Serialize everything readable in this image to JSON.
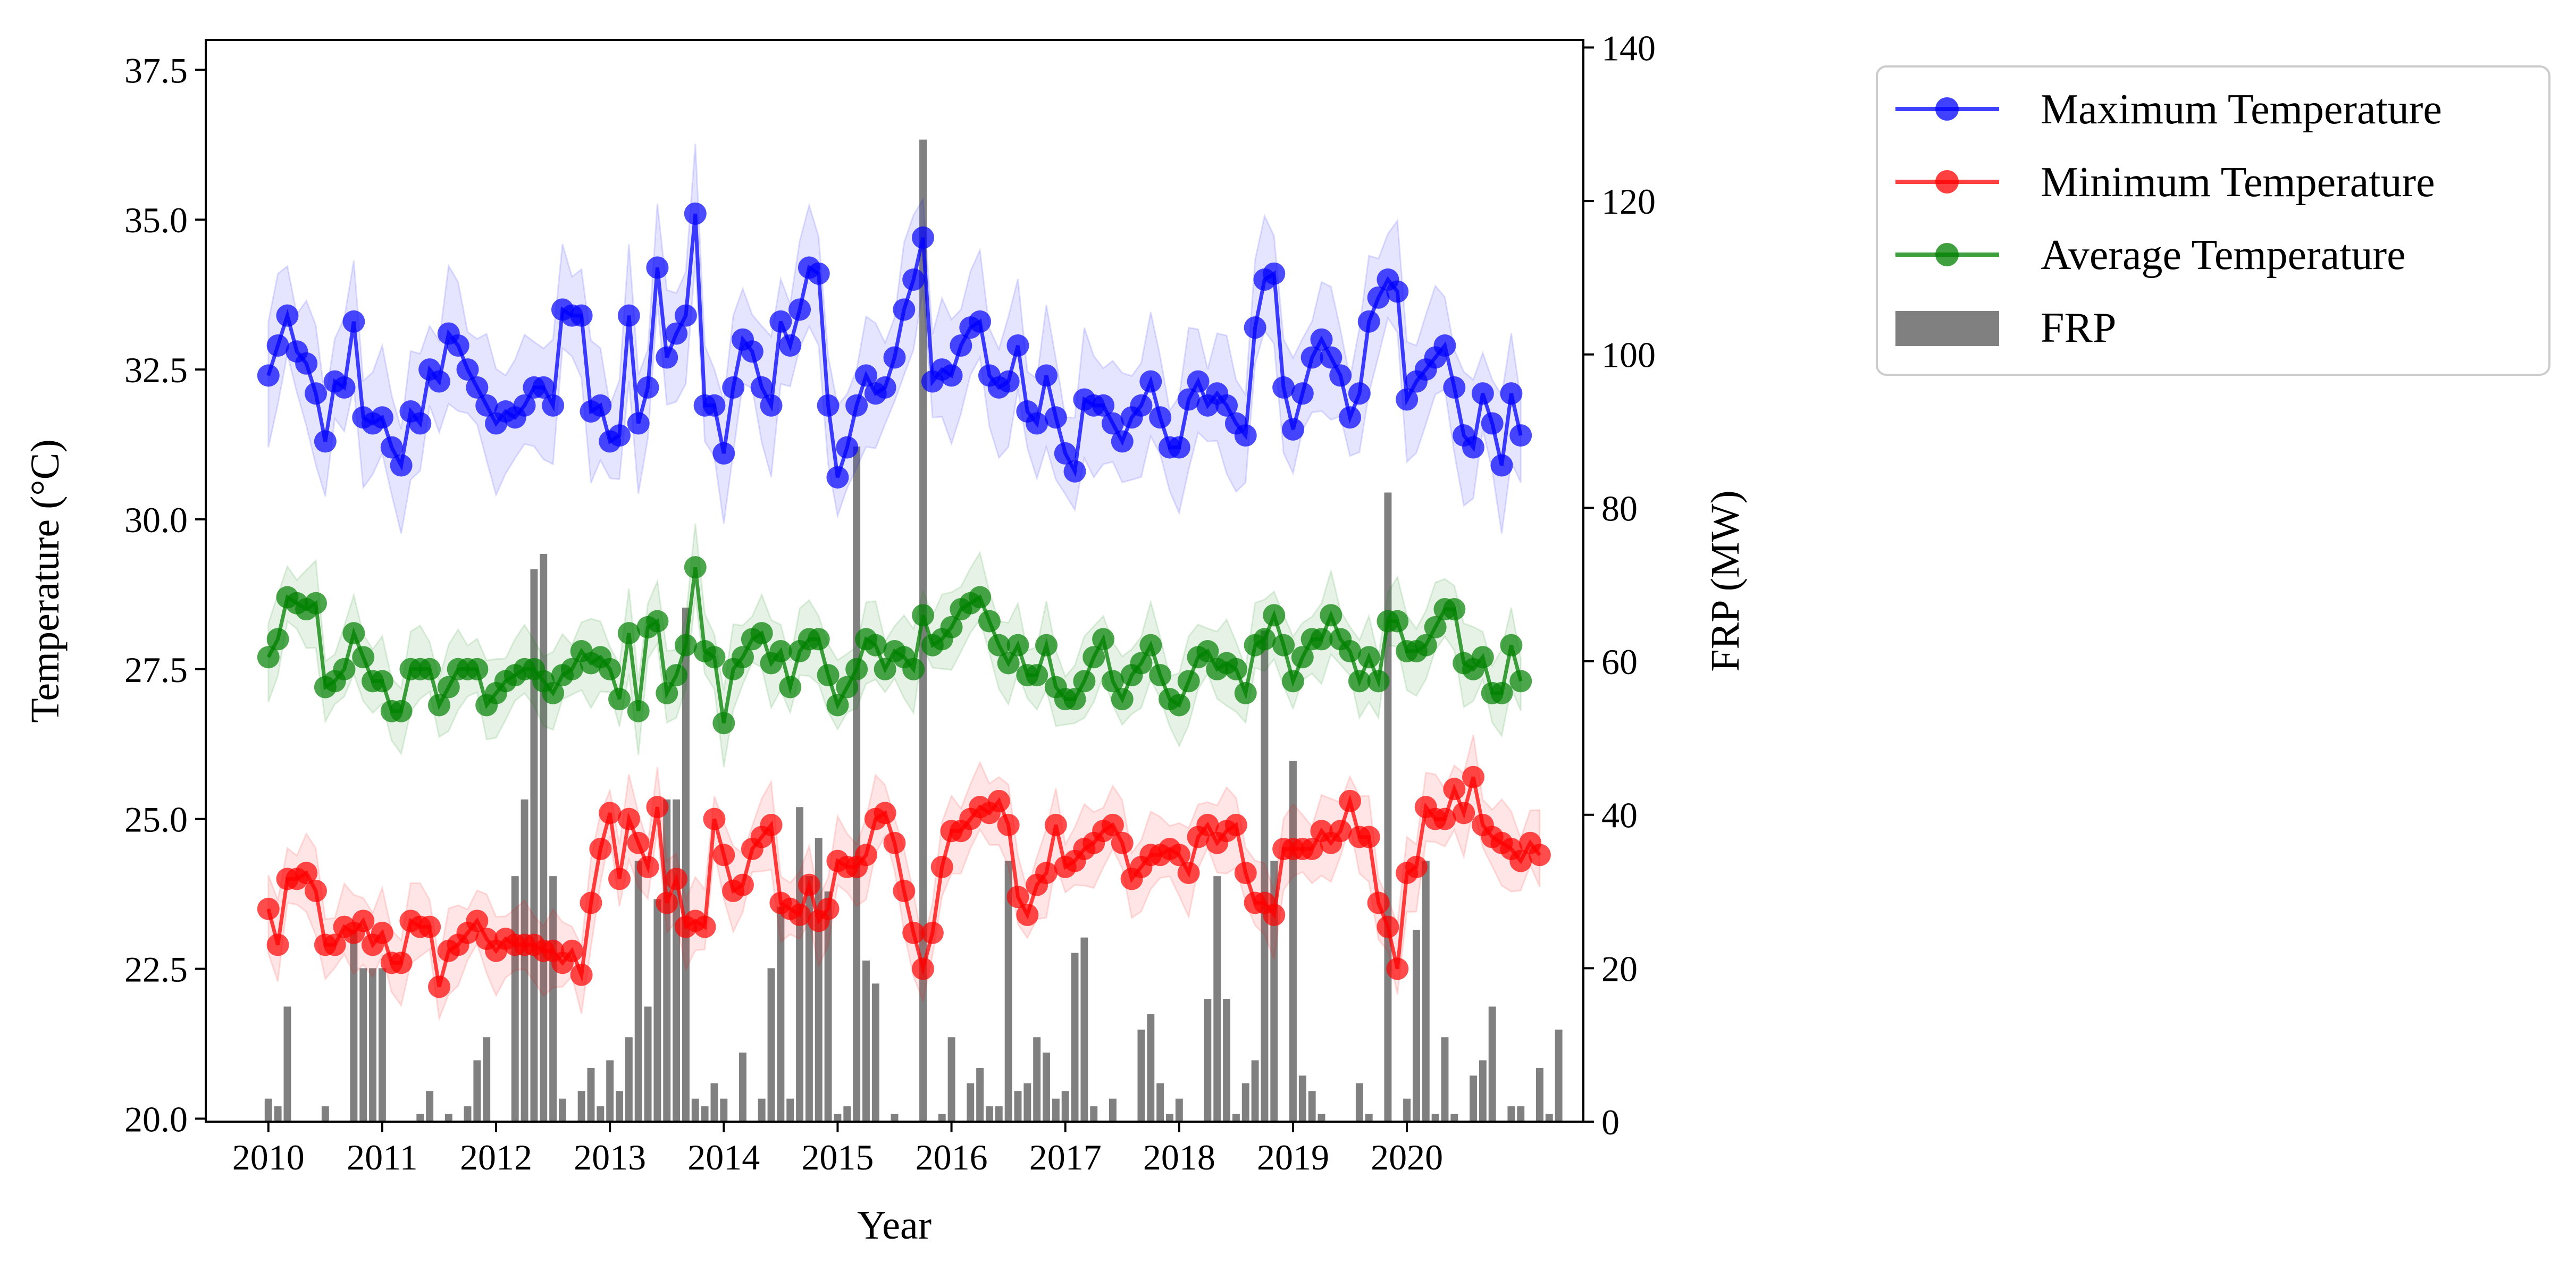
{
  "chart_data": {
    "type": "line+bar",
    "xlabel": "Year",
    "ylabel_left": "Temperature (°C)",
    "ylabel_right": "FRP (MW)",
    "x_ticks": [
      "2010",
      "2011",
      "2012",
      "2013",
      "2014",
      "2015",
      "2016",
      "2017",
      "2018",
      "2019",
      "2020"
    ],
    "x_range": [
      2009.45,
      2021.55
    ],
    "y_left": {
      "ylim": [
        19.95,
        38.0
      ],
      "ticks": [
        "20.0",
        "22.5",
        "25.0",
        "27.5",
        "30.0",
        "32.5",
        "35.0",
        "37.5"
      ]
    },
    "y_right": {
      "ylim": [
        0,
        141
      ],
      "ticks": [
        "0",
        "20",
        "40",
        "60",
        "80",
        "100",
        "120",
        "140"
      ]
    },
    "grid": false,
    "legend_position": "outside-right-top",
    "series": [
      {
        "name": "Maximum Temperature",
        "color": "#0000ff",
        "band_width": 1.2,
        "values": [
          32.4,
          32.9,
          33.4,
          32.8,
          32.6,
          32.1,
          31.3,
          32.3,
          32.2,
          33.3,
          31.7,
          31.6,
          31.7,
          31.2,
          30.9,
          31.8,
          31.6,
          32.5,
          32.3,
          33.1,
          32.9,
          32.5,
          32.2,
          31.9,
          31.6,
          31.8,
          31.7,
          31.9,
          32.2,
          32.2,
          31.9,
          33.5,
          33.4,
          33.4,
          31.8,
          31.9,
          31.3,
          31.4,
          33.4,
          31.6,
          32.2,
          34.2,
          32.7,
          33.1,
          33.4,
          35.1,
          31.9,
          31.9,
          31.1,
          32.2,
          33.0,
          32.8,
          32.2,
          31.9,
          33.3,
          32.9,
          33.5,
          34.2,
          34.1,
          31.9,
          30.7,
          31.2,
          31.9,
          32.4,
          32.1,
          32.2,
          32.7,
          33.5,
          34.0,
          34.7,
          32.3,
          32.5,
          32.4,
          32.9,
          33.2,
          33.3,
          32.4,
          32.2,
          32.3,
          32.9,
          31.8,
          31.6,
          32.4,
          31.7,
          31.1,
          30.8,
          32.0,
          31.9,
          31.9,
          31.6,
          31.3,
          31.7,
          31.9,
          32.3,
          31.7,
          31.2,
          31.2,
          32.0,
          32.3,
          31.9,
          32.1,
          31.9,
          31.6,
          31.4,
          33.2,
          34.0,
          34.1,
          32.2,
          31.5,
          32.1,
          32.7,
          33.0,
          32.7,
          32.4,
          31.7,
          32.1,
          33.3,
          33.7,
          34.0,
          33.8,
          32.0,
          32.3,
          32.5,
          32.7,
          32.9,
          32.2,
          31.4,
          31.2,
          32.1,
          31.6,
          30.9,
          32.1,
          31.4
        ]
      },
      {
        "name": "Minimum Temperature",
        "color": "#ff0000",
        "band_width": 0.75,
        "values": [
          23.5,
          22.9,
          24.0,
          24.0,
          24.1,
          23.8,
          22.9,
          22.9,
          23.2,
          23.1,
          23.3,
          22.9,
          23.1,
          22.6,
          22.6,
          23.3,
          23.2,
          23.2,
          22.2,
          22.8,
          22.9,
          23.1,
          23.3,
          23.0,
          22.8,
          23.0,
          22.9,
          22.9,
          22.9,
          22.8,
          22.8,
          22.6,
          22.8,
          22.4,
          23.6,
          24.5,
          25.1,
          24.0,
          25.0,
          24.6,
          24.2,
          25.2,
          23.6,
          24.0,
          23.2,
          23.3,
          23.2,
          25.0,
          24.4,
          23.8,
          23.9,
          24.5,
          24.7,
          24.9,
          23.6,
          23.5,
          23.4,
          23.9,
          23.3,
          23.5,
          24.3,
          24.2,
          24.2,
          24.4,
          25.0,
          25.1,
          24.6,
          23.8,
          23.1,
          22.5,
          23.1,
          24.2,
          24.8,
          24.8,
          25.0,
          25.2,
          25.1,
          25.3,
          24.9,
          23.7,
          23.4,
          23.9,
          24.1,
          24.9,
          24.2,
          24.3,
          24.5,
          24.6,
          24.8,
          24.9,
          24.6,
          24.0,
          24.2,
          24.4,
          24.4,
          24.5,
          24.4,
          24.1,
          24.7,
          24.9,
          24.6,
          24.8,
          24.9,
          24.1,
          23.6,
          23.6,
          23.4,
          24.5,
          24.5,
          24.5,
          24.5,
          24.8,
          24.6,
          24.8,
          25.3,
          24.7,
          24.7,
          23.6,
          23.2,
          22.5,
          24.1,
          24.2,
          25.2,
          25.0,
          25.0,
          25.5,
          25.1,
          25.7,
          24.9,
          24.7,
          24.6,
          24.5,
          24.3,
          24.6,
          24.4
        ]
      },
      {
        "name": "Average Temperature",
        "color": "#008000",
        "band_width": 0.75,
        "values": [
          27.7,
          28.0,
          28.7,
          28.6,
          28.5,
          28.6,
          27.2,
          27.3,
          27.5,
          28.1,
          27.7,
          27.3,
          27.3,
          26.8,
          26.8,
          27.5,
          27.5,
          27.5,
          26.9,
          27.2,
          27.5,
          27.5,
          27.5,
          26.9,
          27.1,
          27.3,
          27.4,
          27.5,
          27.5,
          27.3,
          27.1,
          27.4,
          27.5,
          27.8,
          27.6,
          27.7,
          27.5,
          27.0,
          28.1,
          26.8,
          28.2,
          28.3,
          27.1,
          27.4,
          27.9,
          29.2,
          27.8,
          27.7,
          26.6,
          27.5,
          27.7,
          28.0,
          28.1,
          27.6,
          27.8,
          27.2,
          27.8,
          28.0,
          28.0,
          27.4,
          26.9,
          27.2,
          27.5,
          28.0,
          27.9,
          27.5,
          27.8,
          27.7,
          27.5,
          28.4,
          27.9,
          28.0,
          28.2,
          28.5,
          28.6,
          28.7,
          28.3,
          27.9,
          27.6,
          27.9,
          27.4,
          27.4,
          27.9,
          27.2,
          27.0,
          27.0,
          27.3,
          27.7,
          28.0,
          27.3,
          27.0,
          27.4,
          27.6,
          27.9,
          27.4,
          27.0,
          26.9,
          27.3,
          27.7,
          27.8,
          27.5,
          27.6,
          27.5,
          27.1,
          27.9,
          28.0,
          28.4,
          27.9,
          27.3,
          27.7,
          28.0,
          28.0,
          28.4,
          28.0,
          27.8,
          27.3,
          27.7,
          27.3,
          28.3,
          28.3,
          27.8,
          27.8,
          27.9,
          28.2,
          28.5,
          28.5,
          27.6,
          27.5,
          27.7,
          27.1,
          27.1,
          27.9,
          27.3
        ]
      },
      {
        "name": "FRP",
        "color": "#808080",
        "type": "bar",
        "values": [
          3,
          2,
          15,
          0,
          0,
          0,
          2,
          0,
          0,
          25,
          20,
          20,
          20,
          0,
          0,
          0,
          1,
          4,
          0,
          1,
          0,
          2,
          8,
          11,
          0,
          0,
          32,
          42,
          72,
          74,
          32,
          3,
          0,
          4,
          7,
          2,
          8,
          4,
          11,
          34,
          15,
          29,
          42,
          42,
          67,
          3,
          2,
          5,
          3,
          0,
          9,
          0,
          3,
          20,
          28,
          3,
          41,
          32,
          37,
          30,
          1,
          2,
          88,
          21,
          18,
          0,
          1,
          0,
          0,
          128,
          0,
          1,
          11,
          0,
          5,
          7,
          2,
          2,
          34,
          4,
          5,
          11,
          9,
          3,
          4,
          22,
          24,
          2,
          0,
          3,
          0,
          0,
          12,
          14,
          5,
          1,
          3,
          0,
          0,
          16,
          32,
          16,
          1,
          5,
          8,
          64,
          34,
          0,
          47,
          6,
          4,
          1,
          0,
          0,
          0,
          5,
          1,
          0,
          82,
          0,
          3,
          25,
          34,
          1,
          11,
          1,
          0,
          6,
          8,
          15,
          0,
          2,
          2,
          0,
          7,
          1,
          12,
          0
        ]
      }
    ]
  }
}
